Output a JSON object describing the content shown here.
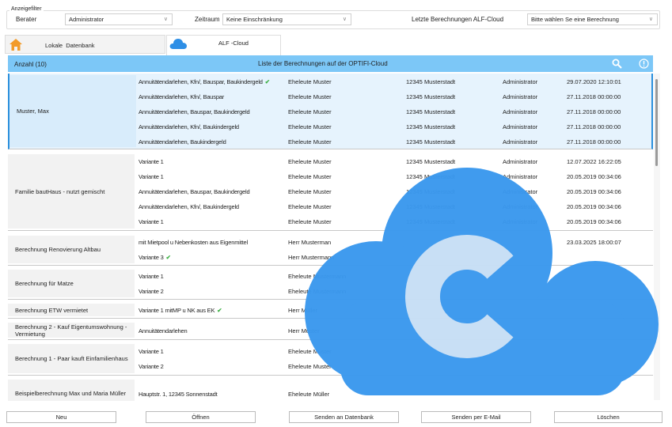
{
  "filter": {
    "title": "Anzeigefilter",
    "berater_label": "Berater",
    "berater_value": "Administrator",
    "zeitraum_label": "Zeitraum",
    "zeitraum_value": "Keine Einschränkung",
    "letzte_label": "Letzte Berechnungen ALF-Cloud",
    "letzte_value": "Bitte wählen Se eine Berechnung"
  },
  "tabs": [
    {
      "label": "Lokale  Datenbank",
      "icon": "house-icon",
      "active": false
    },
    {
      "label": "ALF -Cloud",
      "icon": "cloud-icon",
      "active": true
    }
  ],
  "header": {
    "count": "Anzahl (10)",
    "title": "Liste der Berechnungen auf der OPTIFI-Cloud",
    "search_icon": "search-icon",
    "info_icon": "info-icon"
  },
  "colors": {
    "accent": "#7cc7f7",
    "selection": "#e6f3fd",
    "cloud": "#3a98ee",
    "cloud_letter": "#c7def5",
    "check": "#3cb043",
    "house": "#f29b2a"
  },
  "groups": [
    {
      "name": "Muster, Max",
      "selected": true,
      "rows": [
        {
          "desc": "Annuitätendarlehen, Kfn/, Bauspar, Baukindergeld",
          "check": true,
          "person": "Eheleute Muster",
          "city": "12345 Musterstadt",
          "user": "Administrator",
          "date": "29.07.2020 12:10:01"
        },
        {
          "desc": "Annuitätendarlehen, Kfn/, Bauspar",
          "person": "Eheleute Muster",
          "city": "12345 Musterstadt",
          "user": "Administrator",
          "date": "27.11.2018 00:00:00"
        },
        {
          "desc": "Annuitätendarlehen, Bauspar, Baukindergeld",
          "person": "Eheleute Muster",
          "city": "12345 Musterstadt",
          "user": "Administrator",
          "date": "27.11.2018 00:00:00"
        },
        {
          "desc": "Annuitätendarlehen, Kfn/, Baukindergeld",
          "person": "Eheleute Muster",
          "city": "12345 Musterstadt",
          "user": "Administrator",
          "date": "27.11.2018 00:00:00"
        },
        {
          "desc": "Annuitätendarlehen, Baukindergeld",
          "person": "Eheleute Muster",
          "city": "12345 Musterstadt",
          "user": "Administrator",
          "date": "27.11.2018 00:00:00"
        }
      ]
    },
    {
      "name": "Familie bautHaus - nutzt gemischt",
      "rows": [
        {
          "desc": "Variante 1",
          "person": "Eheleute Muster",
          "city": "12345 Musterstadt",
          "user": "Administrator",
          "date": "12.07.2022 16:22:05"
        },
        {
          "desc": "Variante 1",
          "person": "Eheleute Muster",
          "city": "12345 Musterstadt",
          "user": "Administrator",
          "date": "20.05.2019 00:34:06"
        },
        {
          "desc": "Annuitätendarlehen, Bauspar, Baukindergeld",
          "person": "Eheleute Muster",
          "city": "12345 Musterstadt",
          "user": "Administrator",
          "date": "20.05.2019 00:34:06"
        },
        {
          "desc": "Annuitätendarlehen, Kfn/, Baukindergeld",
          "person": "Eheleute Muster",
          "city": "12345 Musterstadt",
          "user": "Administrator",
          "date": "20.05.2019 00:34:06"
        },
        {
          "desc": "Variante 1",
          "person": "Eheleute Muster",
          "city": "12345 Musterstadt",
          "user": "Administrator",
          "date": "20.05.2019 00:34:06"
        }
      ]
    },
    {
      "name": "Berechnung Renovierung Altbau",
      "rows": [
        {
          "desc": "mit Mietpool u Nebenkosten aus Eigenmittel",
          "person": "Herr Musterman",
          "date": "23.03.2025 18:00:07"
        },
        {
          "desc": "Variante 3",
          "check": true,
          "person": "Herr Mustermann"
        }
      ]
    },
    {
      "name": "Berechnung für Matze",
      "rows": [
        {
          "desc": "Variante 1",
          "person": "Eheleute Mustermann"
        },
        {
          "desc": "Variante 2",
          "person": "Eheleute Mustermann"
        }
      ]
    },
    {
      "name": "Berechnung ETW vermietet",
      "rows": [
        {
          "desc": "Variante 1 mitMP u NK aus EK",
          "check": true,
          "person": "Herr Müller"
        }
      ]
    },
    {
      "name": "Berechnung 2 - Kauf Eigentumswohnung - Vermietung",
      "rows": [
        {
          "desc": "Annuitätendarlehen",
          "person": "Herr Muster"
        }
      ]
    },
    {
      "name": "Berechnung 1 - Paar kauft Einfamilienhaus",
      "rows": [
        {
          "desc": "Variante 1",
          "person": "Eheleute Muster"
        },
        {
          "desc": "Variante 2",
          "person": "Eheleute Muster"
        }
      ]
    },
    {
      "name": "Beispielberechnung Max und Maria Müller",
      "rows": [
        {
          "desc": "Hauptstr. 1, 12345 Sonnenstadt",
          "person": "Eheleute Müller"
        }
      ]
    }
  ],
  "overlay": {
    "letter": "C"
  },
  "buttons": {
    "new": "Neu",
    "open": "Öffnen",
    "send_db": "Senden an Datenbank",
    "send_mail": "Senden per E-Mail",
    "delete": "Löschen"
  }
}
